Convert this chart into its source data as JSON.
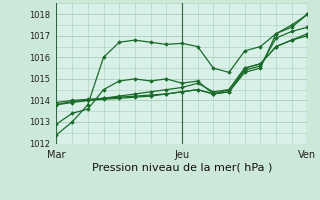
{
  "title": "Pression niveau de la mer( hPa )",
  "bg_color": "#cce8d8",
  "plot_bg_color": "#d8f0e8",
  "grid_color": "#aacfba",
  "line_color": "#1a6b2a",
  "ylim": [
    1012,
    1018.5
  ],
  "yticks": [
    1012,
    1013,
    1014,
    1015,
    1016,
    1017,
    1018
  ],
  "xtick_labels": [
    "Mar",
    "Jeu",
    "Ven"
  ],
  "xtick_positions": [
    0,
    2,
    4
  ],
  "vlines": [
    0,
    2,
    4
  ],
  "series": [
    [
      1012.4,
      1013.0,
      1013.8,
      1016.0,
      1016.7,
      1016.8,
      1016.7,
      1016.6,
      1016.65,
      1016.5,
      1015.5,
      1015.3,
      1016.3,
      1016.5,
      1017.1,
      1017.4,
      1018.0
    ],
    [
      1012.9,
      1013.4,
      1013.6,
      1014.5,
      1014.9,
      1015.0,
      1014.9,
      1015.0,
      1014.8,
      1014.9,
      1014.3,
      1014.4,
      1015.3,
      1015.5,
      1017.1,
      1017.5,
      1018.0
    ],
    [
      1013.8,
      1013.9,
      1014.0,
      1014.05,
      1014.1,
      1014.15,
      1014.2,
      1014.3,
      1014.4,
      1014.5,
      1014.3,
      1014.4,
      1015.4,
      1015.6,
      1016.9,
      1017.2,
      1017.4
    ],
    [
      1013.9,
      1014.0,
      1014.05,
      1014.1,
      1014.15,
      1014.2,
      1014.25,
      1014.3,
      1014.4,
      1014.5,
      1014.3,
      1014.5,
      1015.5,
      1015.7,
      1016.5,
      1016.8,
      1017.0
    ],
    [
      1013.8,
      1013.95,
      1014.0,
      1014.1,
      1014.2,
      1014.3,
      1014.4,
      1014.5,
      1014.6,
      1014.8,
      1014.4,
      1014.5,
      1015.5,
      1015.7,
      1016.5,
      1016.8,
      1017.1
    ]
  ],
  "marker": "D",
  "markersize": 1.8,
  "linewidth": 0.9,
  "ylabel_fontsize": 6,
  "xlabel_fontsize": 8,
  "xtick_fontsize": 7
}
